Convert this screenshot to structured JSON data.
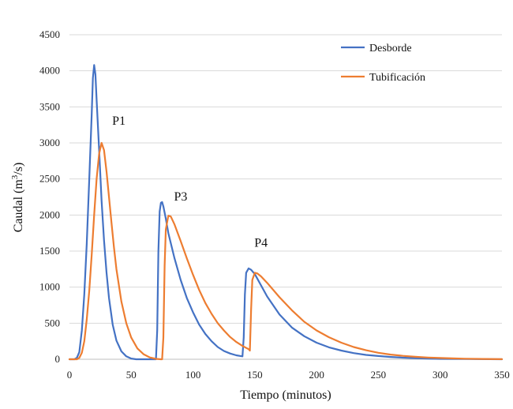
{
  "chart_data": {
    "type": "line",
    "title": "",
    "xlabel": "Tiempo (minutos)",
    "ylabel_parts": [
      "Caudal (m",
      "3",
      "/s)"
    ],
    "xlim": [
      0,
      350
    ],
    "ylim": [
      0,
      4500
    ],
    "xticks": [
      0,
      50,
      100,
      150,
      200,
      250,
      300,
      350
    ],
    "yticks": [
      0,
      500,
      1000,
      1500,
      2000,
      2500,
      3000,
      3500,
      4000,
      4500
    ],
    "grid": "horizontal",
    "legend_position": "top-right",
    "series": [
      {
        "name": "Desborde",
        "color": "#4472C4",
        "points": [
          [
            0,
            0
          ],
          [
            4,
            0
          ],
          [
            6,
            20
          ],
          [
            8,
            100
          ],
          [
            10,
            400
          ],
          [
            12,
            900
          ],
          [
            14,
            1600
          ],
          [
            16,
            2500
          ],
          [
            18,
            3400
          ],
          [
            19,
            3900
          ],
          [
            20,
            4080
          ],
          [
            21,
            3950
          ],
          [
            22,
            3600
          ],
          [
            24,
            2900
          ],
          [
            26,
            2200
          ],
          [
            28,
            1650
          ],
          [
            30,
            1200
          ],
          [
            32,
            850
          ],
          [
            35,
            480
          ],
          [
            38,
            260
          ],
          [
            42,
            110
          ],
          [
            46,
            40
          ],
          [
            50,
            10
          ],
          [
            54,
            0
          ],
          [
            70,
            0
          ],
          [
            71,
            400
          ],
          [
            72,
            1500
          ],
          [
            73,
            2050
          ],
          [
            74,
            2170
          ],
          [
            75,
            2180
          ],
          [
            76,
            2120
          ],
          [
            78,
            1950
          ],
          [
            80,
            1750
          ],
          [
            85,
            1400
          ],
          [
            90,
            1100
          ],
          [
            95,
            850
          ],
          [
            100,
            650
          ],
          [
            105,
            480
          ],
          [
            110,
            350
          ],
          [
            115,
            250
          ],
          [
            120,
            170
          ],
          [
            125,
            115
          ],
          [
            130,
            80
          ],
          [
            135,
            55
          ],
          [
            140,
            40
          ],
          [
            141,
            300
          ],
          [
            142,
            900
          ],
          [
            143,
            1200
          ],
          [
            145,
            1260
          ],
          [
            147,
            1240
          ],
          [
            150,
            1180
          ],
          [
            160,
            870
          ],
          [
            170,
            620
          ],
          [
            180,
            440
          ],
          [
            190,
            320
          ],
          [
            200,
            230
          ],
          [
            210,
            165
          ],
          [
            220,
            120
          ],
          [
            230,
            85
          ],
          [
            240,
            60
          ],
          [
            250,
            45
          ],
          [
            260,
            32
          ],
          [
            270,
            22
          ],
          [
            280,
            15
          ],
          [
            290,
            10
          ],
          [
            300,
            6
          ],
          [
            320,
            3
          ],
          [
            350,
            0
          ]
        ]
      },
      {
        "name": "Tubificación",
        "color": "#ED7D31",
        "points": [
          [
            0,
            0
          ],
          [
            6,
            0
          ],
          [
            8,
            20
          ],
          [
            10,
            90
          ],
          [
            12,
            250
          ],
          [
            14,
            550
          ],
          [
            16,
            950
          ],
          [
            18,
            1450
          ],
          [
            20,
            2000
          ],
          [
            22,
            2500
          ],
          [
            24,
            2850
          ],
          [
            26,
            3000
          ],
          [
            28,
            2900
          ],
          [
            30,
            2600
          ],
          [
            32,
            2250
          ],
          [
            34,
            1900
          ],
          [
            36,
            1550
          ],
          [
            38,
            1250
          ],
          [
            42,
            800
          ],
          [
            46,
            500
          ],
          [
            50,
            300
          ],
          [
            55,
            150
          ],
          [
            60,
            70
          ],
          [
            65,
            25
          ],
          [
            70,
            5
          ],
          [
            74,
            0
          ],
          [
            75,
            0
          ],
          [
            76,
            300
          ],
          [
            77,
            1300
          ],
          [
            78,
            1800
          ],
          [
            80,
            1990
          ],
          [
            82,
            1980
          ],
          [
            85,
            1870
          ],
          [
            90,
            1640
          ],
          [
            95,
            1400
          ],
          [
            100,
            1170
          ],
          [
            105,
            960
          ],
          [
            110,
            780
          ],
          [
            115,
            630
          ],
          [
            120,
            500
          ],
          [
            125,
            400
          ],
          [
            130,
            310
          ],
          [
            135,
            240
          ],
          [
            140,
            185
          ],
          [
            145,
            140
          ],
          [
            146,
            120
          ],
          [
            147,
            700
          ],
          [
            148,
            1100
          ],
          [
            150,
            1200
          ],
          [
            152,
            1190
          ],
          [
            155,
            1150
          ],
          [
            160,
            1060
          ],
          [
            170,
            860
          ],
          [
            180,
            680
          ],
          [
            190,
            520
          ],
          [
            200,
            400
          ],
          [
            210,
            305
          ],
          [
            220,
            230
          ],
          [
            230,
            170
          ],
          [
            240,
            125
          ],
          [
            250,
            90
          ],
          [
            260,
            65
          ],
          [
            270,
            47
          ],
          [
            280,
            34
          ],
          [
            290,
            24
          ],
          [
            300,
            17
          ],
          [
            310,
            12
          ],
          [
            320,
            8
          ],
          [
            335,
            4
          ],
          [
            350,
            1
          ]
        ]
      }
    ],
    "annotations": [
      {
        "text": "P1",
        "x": 40,
        "y": 3250
      },
      {
        "text": "P3",
        "x": 90,
        "y": 2200
      },
      {
        "text": "P4",
        "x": 155,
        "y": 1560
      }
    ]
  }
}
